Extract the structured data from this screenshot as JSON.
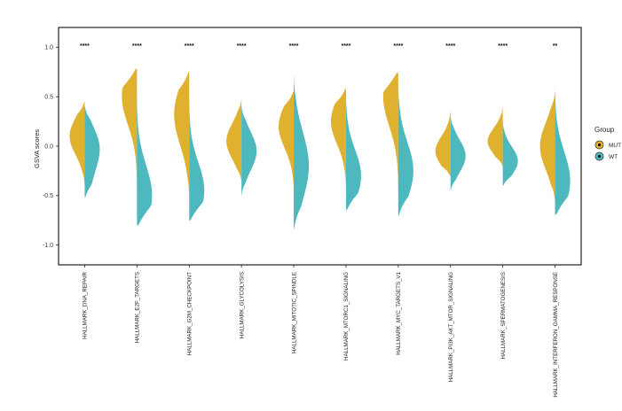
{
  "chart_data": {
    "type": "violin",
    "ylabel": "GSVA scores",
    "ylim": [
      -1.2,
      1.2
    ],
    "yticks": [
      "1.0",
      "0.5",
      "0.0",
      "-0.5",
      "-1.0"
    ],
    "yticks_values": [
      1.0,
      0.5,
      0.0,
      -0.5,
      -1.0
    ],
    "grid": false,
    "legend": {
      "title": "Group",
      "position": "right",
      "entries": [
        {
          "name": "MUT",
          "color": "#E0B12E"
        },
        {
          "name": "WT",
          "color": "#4DB8BE"
        }
      ]
    },
    "categories": [
      "HALLMARK_DNA_REPAIR",
      "HALLMARK_E2F_TARGETS",
      "HALLMARK_G2M_CHECKPOINT",
      "HALLMARK_GLYCOLYSIS",
      "HALLMARK_MITOTIC_SPINDLE",
      "HALLMARK_MTORC1_SIGNALING",
      "HALLMARK_MYC_TARGETS_V1",
      "HALLMARK_PI3K_AKT_MTOR_SIGNALING",
      "HALLMARK_SPERMATOGENESIS",
      "HALLMARK_INTERFERON_GAMMA_RESPONSE"
    ],
    "significance": [
      "****",
      "****",
      "****",
      "****",
      "****",
      "****",
      "****",
      "****",
      "****",
      "**"
    ],
    "series": [
      {
        "name": "MUT",
        "distributions": [
          {
            "min": -0.4,
            "max": 0.45,
            "peaks": [
              [
                0.1,
                1.0
              ]
            ]
          },
          {
            "min": -0.5,
            "max": 0.78,
            "peaks": [
              [
                0.5,
                1.0
              ]
            ]
          },
          {
            "min": -0.5,
            "max": 0.75,
            "peaks": [
              [
                0.4,
                0.9
              ],
              [
                0.15,
                0.5
              ]
            ]
          },
          {
            "min": -0.35,
            "max": 0.48,
            "peaks": [
              [
                0.05,
                1.0
              ]
            ]
          },
          {
            "min": -0.45,
            "max": 0.55,
            "peaks": [
              [
                0.2,
                1.0
              ]
            ]
          },
          {
            "min": -0.45,
            "max": 0.58,
            "peaks": [
              [
                0.25,
                1.0
              ]
            ]
          },
          {
            "min": -0.6,
            "max": 0.74,
            "peaks": [
              [
                0.5,
                1.0
              ]
            ]
          },
          {
            "min": -0.3,
            "max": 0.38,
            "peaks": [
              [
                -0.05,
                1.0
              ]
            ]
          },
          {
            "min": -0.2,
            "max": 0.4,
            "peaks": [
              [
                0.05,
                1.0
              ]
            ]
          },
          {
            "min": -0.55,
            "max": 0.55,
            "peaks": [
              [
                0.0,
                1.0
              ]
            ]
          }
        ]
      },
      {
        "name": "WT",
        "distributions": [
          {
            "min": -0.52,
            "max": 0.4,
            "peaks": [
              [
                0.0,
                1.0
              ],
              [
                -0.35,
                0.35
              ]
            ]
          },
          {
            "min": -0.8,
            "max": 0.6,
            "peaks": [
              [
                -0.5,
                1.0
              ]
            ]
          },
          {
            "min": -0.75,
            "max": 0.55,
            "peaks": [
              [
                -0.45,
                1.0
              ]
            ]
          },
          {
            "min": -0.5,
            "max": 0.4,
            "peaks": [
              [
                -0.05,
                1.0
              ]
            ]
          },
          {
            "min": -0.84,
            "max": 0.72,
            "peaks": [
              [
                -0.2,
                1.0
              ]
            ]
          },
          {
            "min": -0.65,
            "max": 0.55,
            "peaks": [
              [
                -0.3,
                1.0
              ]
            ]
          },
          {
            "min": -0.7,
            "max": 0.62,
            "peaks": [
              [
                -0.25,
                1.0
              ]
            ]
          },
          {
            "min": -0.45,
            "max": 0.3,
            "peaks": [
              [
                -0.1,
                1.0
              ]
            ]
          },
          {
            "min": -0.4,
            "max": 0.25,
            "peaks": [
              [
                -0.15,
                1.0
              ]
            ]
          },
          {
            "min": -0.7,
            "max": 0.65,
            "peaks": [
              [
                -0.35,
                1.0
              ]
            ]
          }
        ]
      }
    ]
  }
}
